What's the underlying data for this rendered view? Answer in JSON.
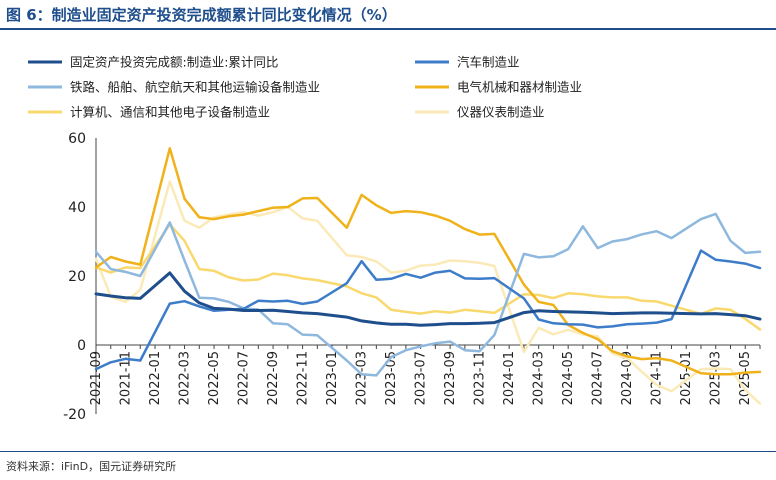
{
  "header": {
    "title": "图 6：制造业固定资产投资完成额累计同比变化情况（%）"
  },
  "footer": {
    "source": "资料来源：iFinD，国元证券研究所"
  },
  "chart_data": {
    "type": "line",
    "title": "",
    "xlabel": "",
    "ylabel": "",
    "ylim": [
      -20,
      60
    ],
    "yticks": [
      -20,
      0,
      20,
      40,
      60
    ],
    "x": [
      "2021-09",
      "2021-10",
      "2021-11",
      "2021-12",
      "2022-01",
      "2022-02",
      "2022-03",
      "2022-04",
      "2022-05",
      "2022-06",
      "2022-07",
      "2022-08",
      "2022-09",
      "2022-10",
      "2022-11",
      "2022-12",
      "2023-01",
      "2023-02",
      "2023-03",
      "2023-04",
      "2023-05",
      "2023-06",
      "2023-07",
      "2023-08",
      "2023-09",
      "2023-10",
      "2023-11",
      "2023-12",
      "2024-01",
      "2024-02",
      "2024-03",
      "2024-04",
      "2024-05",
      "2024-06",
      "2024-07",
      "2024-08",
      "2024-09",
      "2024-10",
      "2024-11",
      "2024-12",
      "2025-01",
      "2025-02",
      "2025-03",
      "2025-04",
      "2025-05",
      "2025-06"
    ],
    "x_tick_labels": [
      "2021-09",
      "2021-11",
      "2022-01",
      "2022-03",
      "2022-05",
      "2022-07",
      "2022-09",
      "2022-11",
      "2023-01",
      "2023-03",
      "2023-05",
      "2023-07",
      "2023-09",
      "2023-11",
      "2024-01",
      "2024-03",
      "2024-05",
      "2024-07",
      "2024-09",
      "2024-11",
      "2025-01",
      "2025-03",
      "2025-05"
    ],
    "grid": false,
    "legend_position": "top",
    "series": [
      {
        "name": "固定资产投资完成额:制造业:累计同比",
        "color": "#1f4e8c",
        "width": 3,
        "values": [
          14.8,
          14.2,
          13.7,
          13.5,
          null,
          20.9,
          15.6,
          12.2,
          10.6,
          10.4,
          10.0,
          10.0,
          10.1,
          9.7,
          9.3,
          9.1,
          null,
          8.1,
          7.0,
          6.4,
          6.0,
          6.0,
          5.7,
          5.9,
          6.2,
          6.2,
          6.3,
          6.5,
          null,
          9.4,
          9.9,
          9.7,
          9.6,
          9.5,
          9.3,
          9.1,
          9.2,
          9.3,
          9.3,
          9.2,
          null,
          9.0,
          9.1,
          8.8,
          8.5,
          7.5
        ]
      },
      {
        "name": "汽车制造业",
        "color": "#3d7cc9",
        "width": 2.5,
        "values": [
          -7.0,
          -5.0,
          -4.0,
          -4.5,
          null,
          12.0,
          12.7,
          11.2,
          9.9,
          10.2,
          10.5,
          12.8,
          12.6,
          12.8,
          11.9,
          12.6,
          null,
          17.9,
          24.3,
          18.9,
          19.2,
          20.6,
          19.5,
          21.0,
          21.5,
          19.3,
          19.2,
          19.4,
          null,
          13.5,
          7.4,
          6.3,
          6.0,
          5.9,
          5.1,
          5.4,
          6.0,
          6.2,
          6.5,
          7.5,
          null,
          27.4,
          24.7,
          24.2,
          23.6,
          22.3
        ]
      },
      {
        "name": "铁路、船舶、航空航天和其他运输设备制造业",
        "color": "#8fb8de",
        "width": 2.5,
        "values": [
          27.0,
          22.0,
          21.2,
          20.0,
          null,
          35.5,
          24.5,
          13.7,
          13.5,
          12.5,
          10.6,
          10.3,
          6.3,
          6.0,
          3.0,
          2.8,
          null,
          -4.5,
          -8.5,
          -8.8,
          -3.5,
          -1.5,
          -0.4,
          0.5,
          1.0,
          -1.5,
          -1.8,
          2.9,
          null,
          26.4,
          25.4,
          25.7,
          27.8,
          34.4,
          28.1,
          30.0,
          30.7,
          32.1,
          33.0,
          31.0,
          null,
          36.5,
          38.0,
          30.2,
          26.7,
          27.0
        ]
      },
      {
        "name": "电气机械和器材制造业",
        "color": "#f0b21b",
        "width": 2.5,
        "values": [
          22.5,
          25.5,
          24.2,
          23.3,
          null,
          57.0,
          42.4,
          37.0,
          36.5,
          37.3,
          37.8,
          38.8,
          39.8,
          40.0,
          42.5,
          42.6,
          null,
          34.0,
          43.5,
          40.5,
          38.3,
          38.8,
          38.5,
          37.5,
          36.0,
          33.6,
          32.0,
          32.2,
          null,
          17.5,
          12.5,
          11.6,
          5.8,
          3.5,
          1.7,
          -1.8,
          -3.3,
          -4.1,
          -3.8,
          -4.5,
          null,
          -8.2,
          -8.5,
          -8.5,
          -8.0,
          -7.8
        ]
      },
      {
        "name": "计算机、通信和其他电子设备制造业",
        "color": "#f9d96d",
        "width": 2.5,
        "values": [
          22.5,
          21.0,
          22.5,
          22.3,
          null,
          35.0,
          30.2,
          22.0,
          21.5,
          19.6,
          18.7,
          19.0,
          20.7,
          20.2,
          19.3,
          18.8,
          null,
          17.0,
          15.0,
          13.8,
          10.2,
          9.6,
          9.1,
          9.8,
          9.4,
          10.2,
          9.8,
          9.3,
          null,
          14.7,
          14.5,
          13.6,
          15.0,
          14.7,
          14.1,
          13.8,
          13.8,
          12.8,
          12.6,
          11.4,
          null,
          9.0,
          10.6,
          10.2,
          7.6,
          4.5
        ]
      },
      {
        "name": "仪器仪表制造业",
        "color": "#fbeab8",
        "width": 2.5,
        "values": [
          25.0,
          14.0,
          12.5,
          16.0,
          null,
          47.4,
          36.0,
          34.0,
          37.0,
          37.8,
          38.5,
          37.5,
          38.5,
          40.0,
          36.7,
          36.0,
          null,
          26.0,
          25.5,
          24.2,
          21.0,
          21.5,
          23.0,
          23.3,
          24.5,
          24.3,
          23.8,
          22.9,
          null,
          -2.0,
          5.0,
          3.1,
          4.4,
          3.0,
          2.5,
          -2.5,
          -3.8,
          -7.8,
          -11.6,
          -13.4,
          null,
          -7.0,
          -6.8,
          -7.0,
          -13.0,
          -17.0
        ]
      }
    ]
  }
}
